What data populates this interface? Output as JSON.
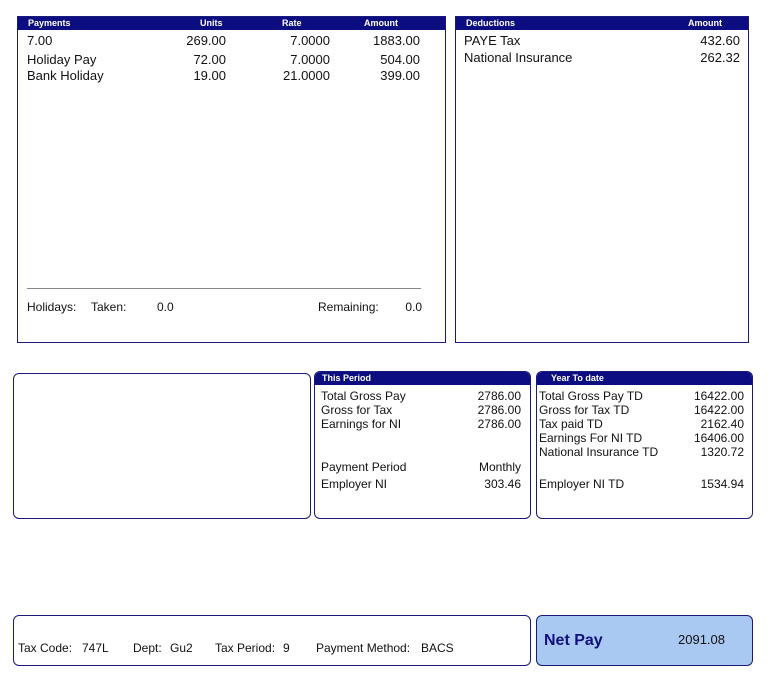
{
  "payments": {
    "headers": {
      "title": "Payments",
      "units": "Units",
      "rate": "Rate",
      "amount": "Amount"
    },
    "rows": [
      {
        "desc": "7.00",
        "units": "269.00",
        "rate": "7.0000",
        "amount": "1883.00"
      },
      {
        "desc": "Holiday Pay",
        "units": "72.00",
        "rate": "7.0000",
        "amount": "504.00"
      },
      {
        "desc": "Bank Holiday",
        "units": "19.00",
        "rate": "21.0000",
        "amount": "399.00"
      }
    ],
    "holidays": {
      "label": "Holidays:",
      "taken_label": "Taken:",
      "taken": "0.0",
      "remaining_label": "Remaining:",
      "remaining": "0.0"
    }
  },
  "deductions": {
    "headers": {
      "title": "Deductions",
      "amount": "Amount"
    },
    "rows": [
      {
        "desc": "PAYE Tax",
        "amount": "432.60"
      },
      {
        "desc": "National Insurance",
        "amount": "262.32"
      }
    ]
  },
  "this_period": {
    "title": "This Period",
    "rows": [
      {
        "label": "Total Gross Pay",
        "value": "2786.00"
      },
      {
        "label": "Gross for Tax",
        "value": "2786.00"
      },
      {
        "label": "Earnings for NI",
        "value": "2786.00"
      },
      {
        "label": "Payment Period",
        "value": "Monthly"
      },
      {
        "label": "Employer NI",
        "value": "303.46"
      }
    ]
  },
  "year_to_date": {
    "title": "Year To date",
    "rows": [
      {
        "label": "Total Gross Pay TD",
        "value": "16422.00"
      },
      {
        "label": "Gross for Tax TD",
        "value": "16422.00"
      },
      {
        "label": "Tax paid TD",
        "value": "2162.40"
      },
      {
        "label": "Earnings For NI TD",
        "value": "16406.00"
      },
      {
        "label": "National Insurance TD",
        "value": "1320.72"
      },
      {
        "label": "Employer NI TD",
        "value": "1534.94"
      }
    ]
  },
  "footer": {
    "tax_code_label": "Tax Code:",
    "tax_code": "747L",
    "dept_label": "Dept:",
    "dept": "Gu2",
    "tax_period_label": "Tax Period:",
    "tax_period": "9",
    "payment_method_label": "Payment Method:",
    "payment_method": "BACS"
  },
  "net_pay": {
    "label": "Net Pay",
    "value": "2091.08"
  }
}
